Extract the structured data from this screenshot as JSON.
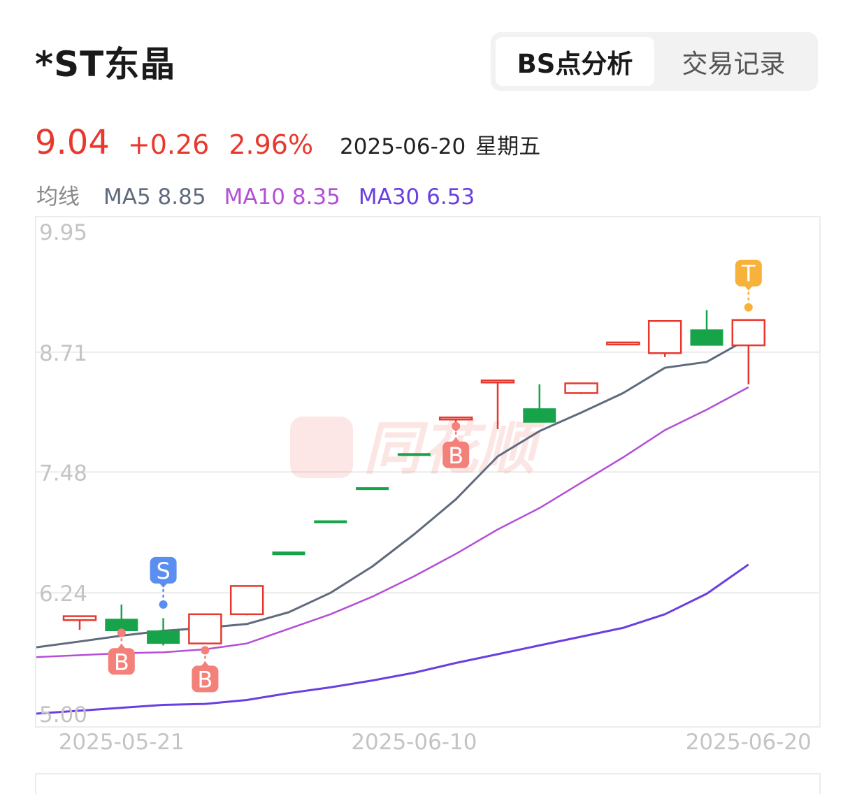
{
  "header": {
    "title": "*ST东晶",
    "tabs": [
      {
        "label": "BS点分析",
        "active": true
      },
      {
        "label": "交易记录",
        "active": false
      }
    ]
  },
  "quote": {
    "price": "9.04",
    "change": "+0.26",
    "change_pct": "2.96%",
    "date": "2025-06-20",
    "weekday": "星期五"
  },
  "ma_legend": {
    "label": "均线",
    "items": [
      {
        "name": "MA5",
        "value": "8.85",
        "color": "#5f6b7d"
      },
      {
        "name": "MA10",
        "value": "8.35",
        "color": "#b44fd6"
      },
      {
        "name": "MA30",
        "value": "6.53",
        "color": "#6a3fe0"
      }
    ]
  },
  "watermark": "同花顺",
  "colors": {
    "up": "#e8382e",
    "down": "#16a34a",
    "buy": "#f4807a",
    "sell": "#5a8ef0",
    "t": "#f7b23b",
    "grid": "#ececec"
  },
  "chart_data": {
    "type": "candlestick",
    "y_ticks": [
      "9.95",
      "8.71",
      "7.48",
      "6.24",
      "5.00"
    ],
    "y_tick_values": [
      9.95,
      8.71,
      7.48,
      6.24,
      5.0
    ],
    "ylim": [
      5.0,
      9.95
    ],
    "x_tick_labels": [
      {
        "label": "2025-05-21",
        "index": 1
      },
      {
        "label": "2025-06-10",
        "index": 8
      },
      {
        "label": "2025-06-20",
        "index": 16
      }
    ],
    "candles": [
      {
        "open": 5.96,
        "high": 6.0,
        "low": 5.86,
        "close": 6.0
      },
      {
        "open": 5.97,
        "high": 6.12,
        "low": 5.83,
        "close": 5.85
      },
      {
        "open": 5.85,
        "high": 5.98,
        "low": 5.7,
        "close": 5.72
      },
      {
        "open": 5.72,
        "high": 6.02,
        "low": 5.72,
        "close": 6.02
      },
      {
        "open": 6.02,
        "high": 6.31,
        "low": 6.01,
        "close": 6.31
      },
      {
        "open": 6.66,
        "high": 6.66,
        "low": 6.63,
        "close": 6.63
      },
      {
        "open": 6.98,
        "high": 6.98,
        "low": 6.96,
        "close": 6.96
      },
      {
        "open": 7.32,
        "high": 7.32,
        "low": 7.3,
        "close": 7.3
      },
      {
        "open": 7.67,
        "high": 7.67,
        "low": 7.65,
        "close": 7.65
      },
      {
        "open": 8.04,
        "high": 8.04,
        "low": 7.9,
        "close": 8.04
      },
      {
        "open": 8.42,
        "high": 8.42,
        "low": 7.92,
        "close": 8.42
      },
      {
        "open": 8.13,
        "high": 8.38,
        "low": 7.99,
        "close": 7.99
      },
      {
        "open": 8.29,
        "high": 8.39,
        "low": 8.28,
        "close": 8.39
      },
      {
        "open": 8.81,
        "high": 8.81,
        "low": 8.78,
        "close": 8.81
      },
      {
        "open": 8.7,
        "high": 9.03,
        "low": 8.66,
        "close": 9.03
      },
      {
        "open": 8.94,
        "high": 9.14,
        "low": 8.78,
        "close": 8.78
      },
      {
        "open": 8.78,
        "high": 9.04,
        "low": 8.38,
        "close": 9.04
      }
    ],
    "series": [
      {
        "name": "MA5",
        "values": [
          5.74,
          5.8,
          5.85,
          5.88,
          5.92,
          6.04,
          6.24,
          6.51,
          6.84,
          7.2,
          7.64,
          7.9,
          8.09,
          8.29,
          8.55,
          8.61,
          8.85
        ]
      },
      {
        "name": "MA10",
        "values": [
          5.6,
          5.62,
          5.63,
          5.66,
          5.72,
          5.87,
          6.02,
          6.2,
          6.41,
          6.64,
          6.89,
          7.11,
          7.37,
          7.63,
          7.91,
          8.12,
          8.35
        ]
      },
      {
        "name": "MA30",
        "values": [
          5.03,
          5.06,
          5.09,
          5.1,
          5.14,
          5.21,
          5.27,
          5.34,
          5.42,
          5.52,
          5.61,
          5.7,
          5.79,
          5.88,
          6.02,
          6.23,
          6.53
        ]
      }
    ],
    "signals": [
      {
        "index": 1,
        "type": "B",
        "price": 5.83
      },
      {
        "index": 2,
        "type": "S",
        "price": 6.12
      },
      {
        "index": 3,
        "type": "B",
        "price": 5.65
      },
      {
        "index": 9,
        "type": "B",
        "price": 7.95
      },
      {
        "index": 16,
        "type": "T",
        "price": 9.17
      }
    ]
  }
}
